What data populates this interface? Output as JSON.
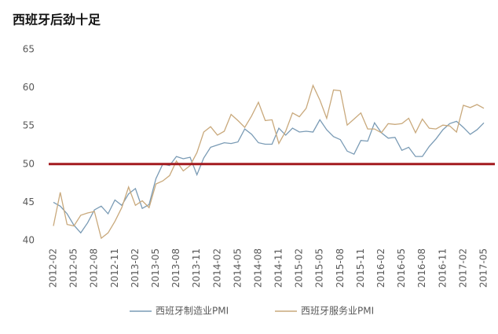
{
  "chart_data": {
    "type": "line",
    "title": "西班牙后劲十足",
    "categories": [
      "2012-02",
      null,
      null,
      "2012-05",
      null,
      null,
      "2012-08",
      null,
      null,
      "2012-11",
      null,
      null,
      "2013-02",
      null,
      null,
      "2013-05",
      null,
      null,
      "2013-08",
      null,
      null,
      "2013-11",
      null,
      null,
      "2014-02",
      null,
      null,
      "2014-05",
      null,
      null,
      "2014-08",
      null,
      null,
      "2014-11",
      null,
      null,
      "2015-02",
      null,
      null,
      "2015-05",
      null,
      null,
      "2015-08",
      null,
      null,
      "2015-11",
      null,
      null,
      "2016-02",
      null,
      null,
      "2016-05",
      null,
      null,
      "2016-08",
      null,
      null,
      "2016-11",
      null,
      null,
      "2017-02",
      null,
      null,
      "2017-05"
    ],
    "series": [
      {
        "name": "西班牙制造业PMI",
        "color": "#7a9bb5",
        "values": [
          45.0,
          44.5,
          43.5,
          42.0,
          41.0,
          42.3,
          44.0,
          44.5,
          43.5,
          45.3,
          44.6,
          46.1,
          46.8,
          44.2,
          44.7,
          48.1,
          50.0,
          49.8,
          51.0,
          50.7,
          50.9,
          48.6,
          50.8,
          52.2,
          52.5,
          52.8,
          52.7,
          52.9,
          54.6,
          53.9,
          52.8,
          52.6,
          52.6,
          54.7,
          53.8,
          54.7,
          54.2,
          54.3,
          54.2,
          55.8,
          54.5,
          53.6,
          53.2,
          51.7,
          51.3,
          53.1,
          53.0,
          55.4,
          54.1,
          53.4,
          53.5,
          51.8,
          52.2,
          51.0,
          51.0,
          52.3,
          53.3,
          54.5,
          55.3,
          55.6,
          54.8,
          53.9,
          54.5,
          55.4
        ]
      },
      {
        "name": "西班牙服务业PMI",
        "color": "#c9a97c",
        "values": [
          41.9,
          46.3,
          42.1,
          41.9,
          43.3,
          43.6,
          43.8,
          40.3,
          41.0,
          42.5,
          44.3,
          47.0,
          44.6,
          45.2,
          44.3,
          47.4,
          47.8,
          48.5,
          50.4,
          49.1,
          49.8,
          51.5,
          54.2,
          54.9,
          53.8,
          54.3,
          56.5,
          55.7,
          54.8,
          56.3,
          58.1,
          55.7,
          55.8,
          52.7,
          54.3,
          56.7,
          56.2,
          57.3,
          60.3,
          58.4,
          56.0,
          59.7,
          59.6,
          55.1,
          55.9,
          56.7,
          54.6,
          54.6,
          54.1,
          55.3,
          55.2,
          55.3,
          56.0,
          54.1,
          55.9,
          54.7,
          54.6,
          55.1,
          55.0,
          54.2,
          57.7,
          57.4,
          57.8,
          57.3
        ]
      }
    ],
    "reference_line": {
      "value": 50,
      "color": "#a31a1f"
    },
    "ylim": [
      40,
      65
    ],
    "yticks": [
      40,
      45,
      50,
      55,
      60,
      65
    ],
    "grid": false,
    "legend": "bottom"
  }
}
